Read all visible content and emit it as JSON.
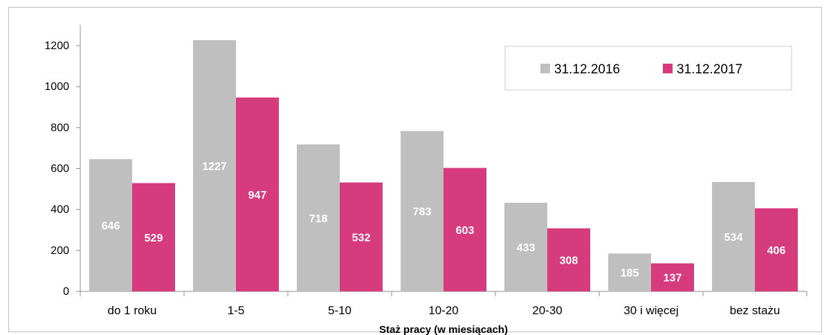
{
  "chart_data": {
    "type": "bar",
    "title": "",
    "xlabel": "Staż pracy (w miesiącach)",
    "ylabel": "",
    "ylim": [
      0,
      1200
    ],
    "yticks": [
      0,
      200,
      400,
      600,
      800,
      1000,
      1200
    ],
    "categories": [
      "do 1 roku",
      "1-5",
      "5-10",
      "10-20",
      "20-30",
      "30 i więcej",
      "bez stażu"
    ],
    "series": [
      {
        "name": "31.12.2016",
        "color": "#bfbfbf",
        "values": [
          646,
          1227,
          718,
          783,
          433,
          185,
          534
        ]
      },
      {
        "name": "31.12.2017",
        "color": "#d63b7d",
        "values": [
          529,
          947,
          532,
          603,
          308,
          137,
          406
        ]
      }
    ],
    "grid": false,
    "legend": "top-right",
    "data_labels": true
  }
}
